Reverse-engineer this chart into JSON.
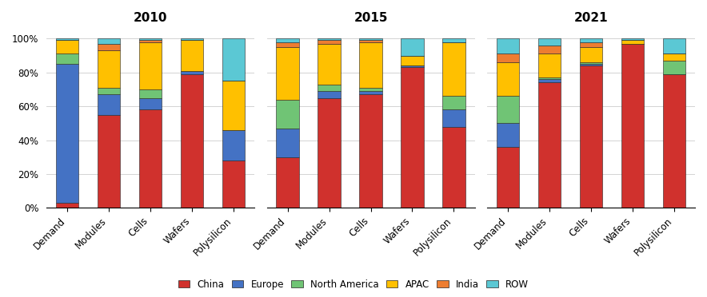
{
  "years": [
    "2010",
    "2015",
    "2021"
  ],
  "categories": [
    "Demand",
    "Modules",
    "Cells",
    "Wafers",
    "Polysilicon"
  ],
  "segments": [
    "China",
    "Europe",
    "North America",
    "APAC",
    "India",
    "ROW"
  ],
  "colors": {
    "China": "#d0312d",
    "Europe": "#4472c4",
    "North America": "#70c475",
    "APAC": "#ffc000",
    "India": "#ed7d31",
    "ROW": "#5bc8d4"
  },
  "data": {
    "2010": {
      "Demand": {
        "China": 3,
        "Europe": 82,
        "North America": 6,
        "APAC": 8,
        "India": 0,
        "ROW": 1
      },
      "Modules": {
        "China": 55,
        "Europe": 12,
        "North America": 4,
        "APAC": 22,
        "India": 4,
        "ROW": 3
      },
      "Cells": {
        "China": 58,
        "Europe": 7,
        "North America": 5,
        "APAC": 28,
        "India": 1,
        "ROW": 1
      },
      "Wafers": {
        "China": 79,
        "Europe": 2,
        "North America": 0,
        "APAC": 18,
        "India": 0,
        "ROW": 1
      },
      "Polysilicon": {
        "China": 28,
        "Europe": 18,
        "North America": 0,
        "APAC": 29,
        "India": 0,
        "ROW": 25
      }
    },
    "2015": {
      "Demand": {
        "China": 30,
        "Europe": 17,
        "North America": 17,
        "APAC": 31,
        "India": 3,
        "ROW": 2
      },
      "Modules": {
        "China": 65,
        "Europe": 4,
        "North America": 4,
        "APAC": 24,
        "India": 2,
        "ROW": 1
      },
      "Cells": {
        "China": 67,
        "Europe": 2,
        "North America": 2,
        "APAC": 27,
        "India": 1,
        "ROW": 1
      },
      "Wafers": {
        "China": 83,
        "Europe": 1,
        "North America": 0,
        "APAC": 6,
        "India": 0,
        "ROW": 10
      },
      "Polysilicon": {
        "China": 48,
        "Europe": 10,
        "North America": 8,
        "APAC": 32,
        "India": 0,
        "ROW": 2
      }
    },
    "2021": {
      "Demand": {
        "China": 36,
        "Europe": 14,
        "North America": 16,
        "APAC": 20,
        "India": 5,
        "ROW": 9
      },
      "Modules": {
        "China": 74,
        "Europe": 2,
        "North America": 1,
        "APAC": 14,
        "India": 5,
        "ROW": 4
      },
      "Cells": {
        "China": 84,
        "Europe": 1,
        "North America": 1,
        "APAC": 9,
        "India": 3,
        "ROW": 2
      },
      "Wafers": {
        "China": 97,
        "Europe": 0,
        "North America": 0,
        "APAC": 2,
        "India": 0,
        "ROW": 1
      },
      "Polysilicon": {
        "China": 79,
        "Europe": 0,
        "North America": 8,
        "APAC": 4,
        "India": 0,
        "ROW": 9
      }
    }
  },
  "title_fontsize": 11,
  "tick_fontsize": 8.5,
  "legend_fontsize": 8.5,
  "bar_width": 0.55,
  "background_color": "#ffffff",
  "edge_color": "#222222"
}
